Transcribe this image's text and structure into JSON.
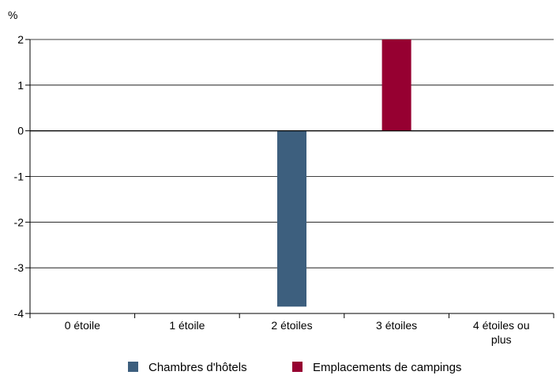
{
  "chart_data": {
    "type": "bar",
    "title": "",
    "xlabel": "",
    "ylabel": "%",
    "ylim": [
      -4,
      2
    ],
    "yticks": [
      2,
      1,
      0,
      -1,
      -2,
      -3,
      -4
    ],
    "categories": [
      "0 étoile",
      "1 étoile",
      "2 étoiles",
      "3 étoiles",
      "4 étoiles ou plus"
    ],
    "series": [
      {
        "name": "Chambres d'hôtels",
        "color": "#3d5f7e",
        "values": [
          0,
          0,
          -3.85,
          0,
          0
        ]
      },
      {
        "name": "Emplacements de campings",
        "color": "#960031",
        "values": [
          0,
          0,
          0,
          2,
          0
        ]
      }
    ],
    "grid": true,
    "legend_position": "bottom"
  }
}
